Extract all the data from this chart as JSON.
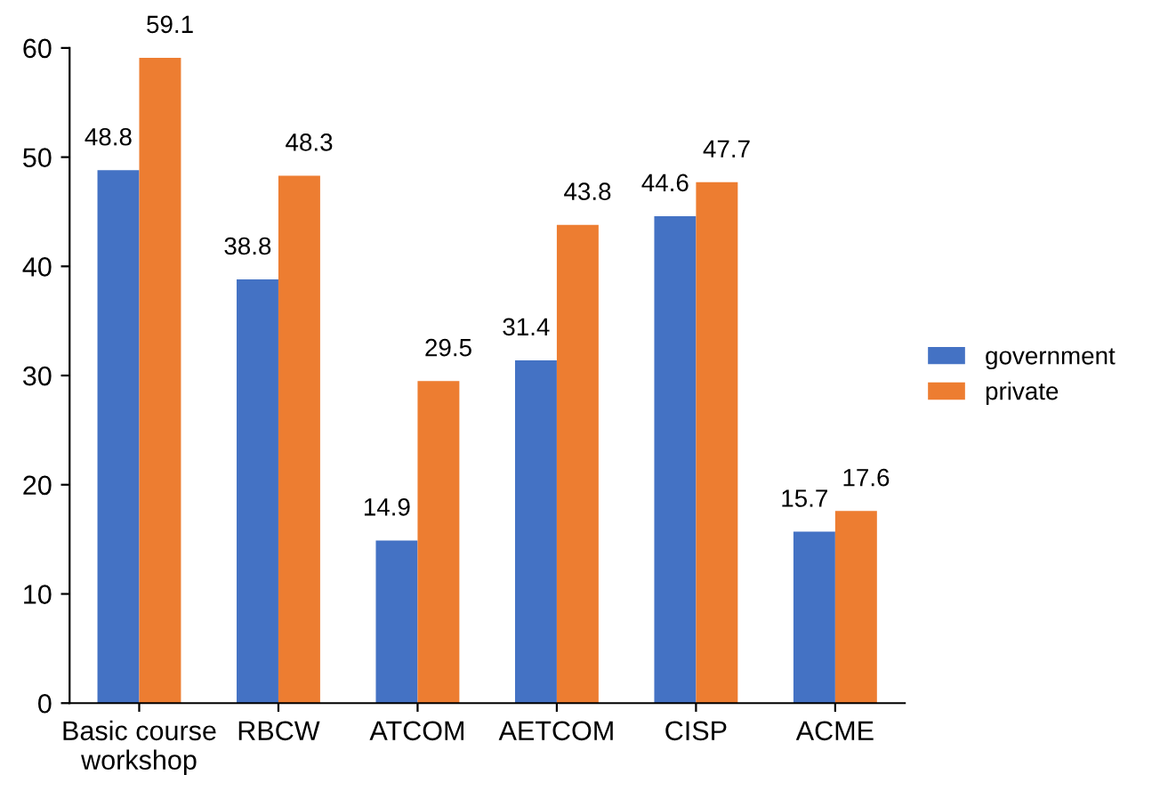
{
  "chart_data": {
    "type": "bar",
    "categories": [
      "Basic course\nworkshop",
      "RBCW",
      "ATCOM",
      "AETCOM",
      "CISP",
      "ACME"
    ],
    "series": [
      {
        "name": "government",
        "color": "#4472c4",
        "values": [
          48.8,
          38.8,
          14.9,
          31.4,
          44.6,
          15.7
        ]
      },
      {
        "name": "private",
        "color": "#ed7d31",
        "values": [
          59.1,
          48.3,
          29.5,
          43.8,
          47.7,
          17.6
        ]
      }
    ],
    "ylim": [
      0,
      60
    ],
    "yticks": [
      0,
      10,
      20,
      30,
      40,
      50,
      60
    ],
    "data_labels": true,
    "legend": "right",
    "grid": false
  }
}
